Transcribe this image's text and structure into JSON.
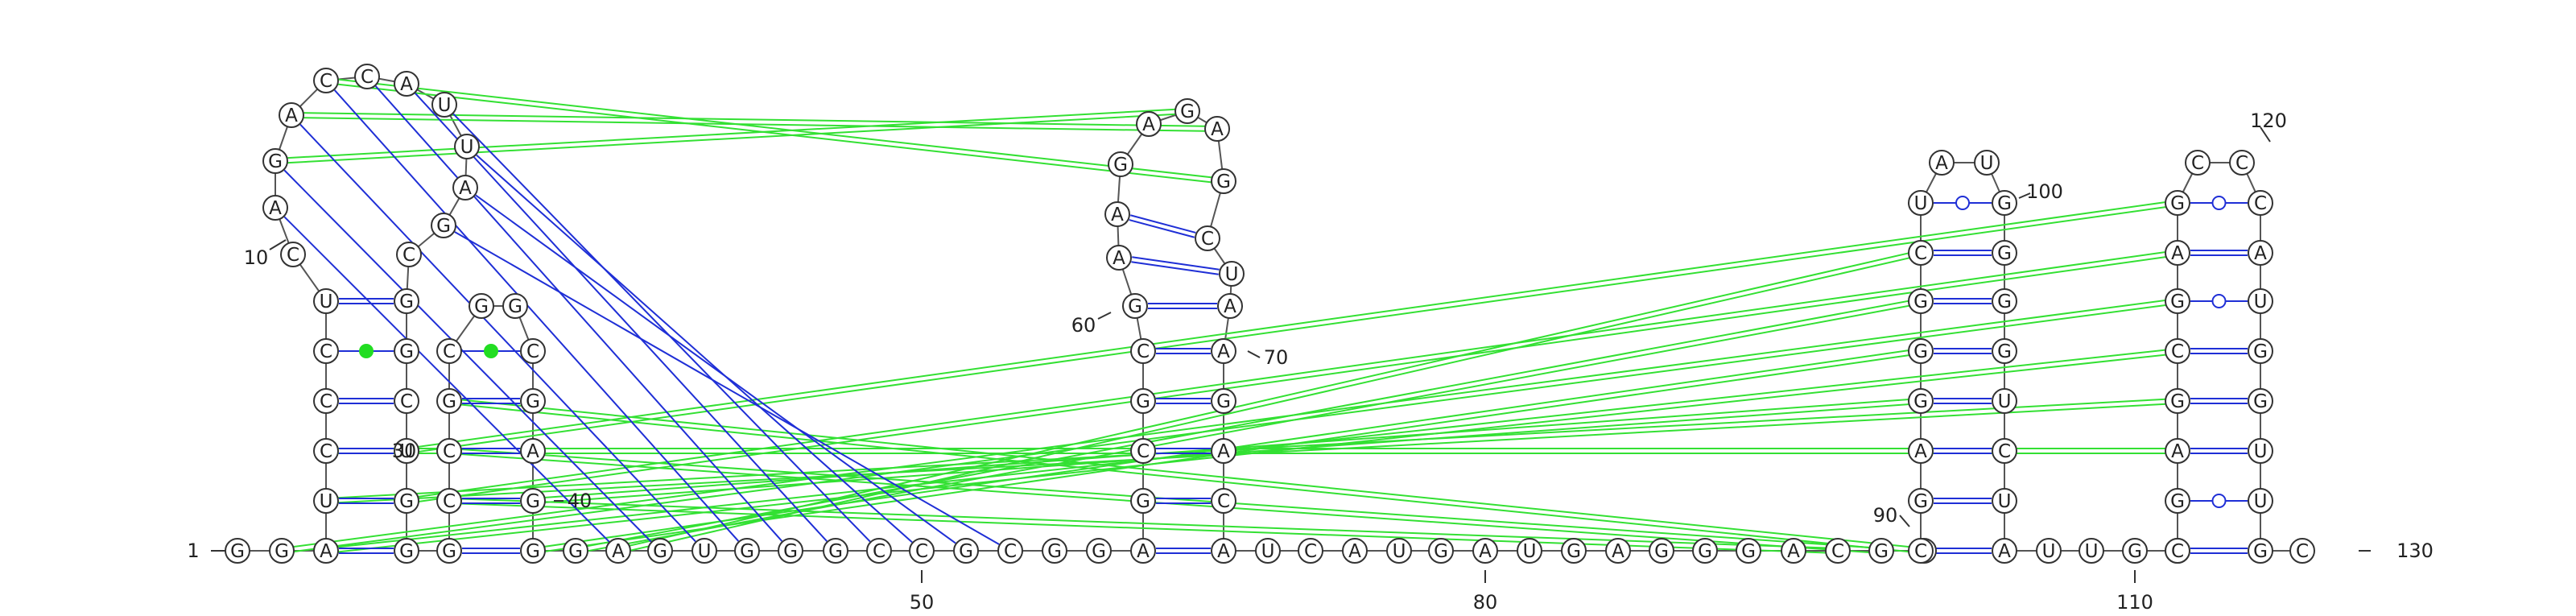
{
  "sequence": "GGAUCCCUCAGACCAUUAGCGGCUGGGCCGCGGCGAGGGAGUGGGCCGCGGAGCGCGAAGAGAGCUAAGACAUCAUGAUGAGGGACGUCGAGGGCUAUGGGGUCUAUUGGCGAGCGAGCCCAUGGUUGC",
  "index_labels": [
    "1",
    "10",
    "30",
    "40",
    "50",
    "60",
    "70",
    "80",
    "90",
    "100",
    "110",
    "120",
    "130"
  ],
  "pair_kinds": {
    "canonical": "double blue line",
    "wobble": "blue line with open circle",
    "noncanonical": "blue line with green dot",
    "pseudoknot": "green line"
  },
  "colors": {
    "canonical": "#1f2fd6",
    "pseudoknot": "#33e033",
    "backbone": "#555555",
    "green_dot": "#22dd22"
  }
}
